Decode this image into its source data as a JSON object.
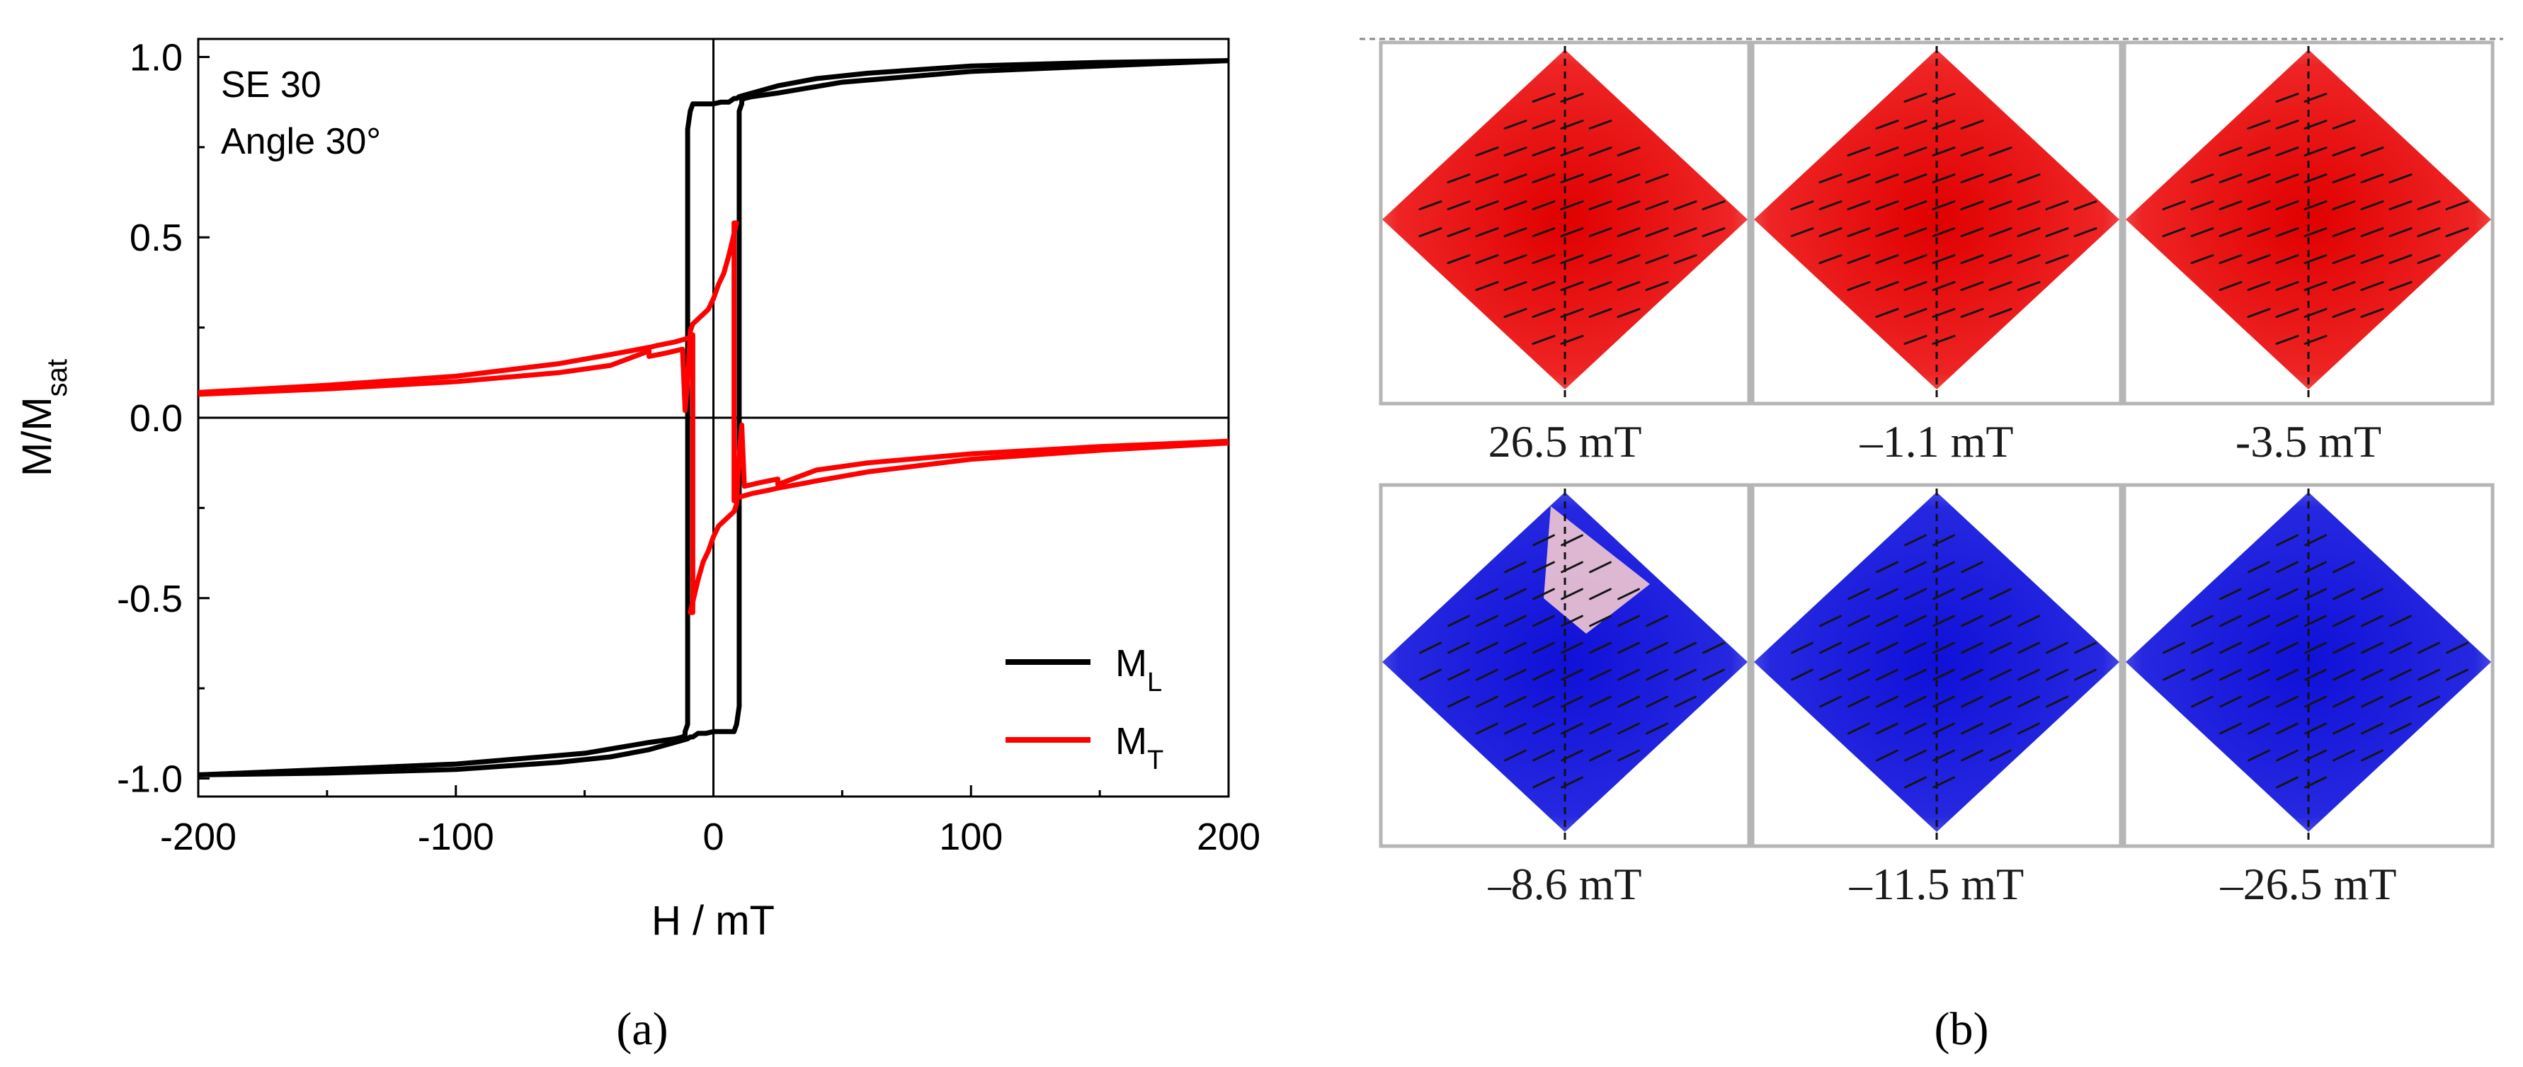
{
  "chart_data": [
    {
      "type": "line",
      "panel_label": "a",
      "annotation": [
        "SE 30",
        "Angle 30°"
      ],
      "xlabel": "H / mT",
      "ylabel": {
        "base": "M/M",
        "sub": "sat"
      },
      "xlim": [
        -200,
        200
      ],
      "ylim": [
        -1.05,
        1.05
      ],
      "xticks": [
        -200,
        -100,
        0,
        100,
        200
      ],
      "xtick_labels": [
        "-200",
        "-100",
        "0",
        "100",
        "200"
      ],
      "yticks": [
        1.0,
        0.5,
        0.0,
        -0.5,
        -1.0
      ],
      "ytick_labels": [
        "1.0",
        "0.5",
        "0.0",
        "-0.5",
        "-1.0"
      ],
      "zero_lines": true,
      "legend_position": "bottom-right",
      "series": [
        {
          "name": "M_L",
          "label_base": "M",
          "label_sub": "L",
          "color": "#000000",
          "branches": [
            {
              "x": [
                200,
                150,
                100,
                60,
                40,
                25,
                15,
                10,
                9,
                8,
                7,
                6,
                3,
                0,
                -3,
                -6,
                -8,
                -9,
                -10,
                -10,
                -10,
                -10,
                -10,
                -10,
                -11,
                -11,
                -12,
                -15,
                -25,
                -50,
                -100,
                -150,
                -200
              ],
              "y": [
                0.99,
                0.985,
                0.975,
                0.955,
                0.94,
                0.92,
                0.9,
                0.89,
                0.885,
                0.885,
                0.88,
                0.875,
                0.875,
                0.87,
                0.87,
                0.87,
                0.87,
                0.85,
                0.8,
                0.5,
                0.0,
                -0.5,
                -0.8,
                -0.85,
                -0.87,
                -0.88,
                -0.885,
                -0.89,
                -0.9,
                -0.93,
                -0.96,
                -0.975,
                -0.99
              ]
            },
            {
              "x": [
                -200,
                -150,
                -100,
                -60,
                -40,
                -25,
                -15,
                -10,
                -9,
                -8,
                -7,
                -6,
                -3,
                0,
                3,
                6,
                8,
                9,
                10,
                10,
                10,
                10,
                10,
                10,
                11,
                11,
                12,
                15,
                25,
                50,
                100,
                150,
                200
              ],
              "y": [
                -0.99,
                -0.985,
                -0.975,
                -0.955,
                -0.94,
                -0.92,
                -0.9,
                -0.89,
                -0.885,
                -0.885,
                -0.88,
                -0.875,
                -0.875,
                -0.87,
                -0.87,
                -0.87,
                -0.87,
                -0.85,
                -0.8,
                -0.5,
                0.0,
                0.5,
                0.8,
                0.85,
                0.87,
                0.88,
                0.885,
                0.89,
                0.9,
                0.93,
                0.96,
                0.975,
                0.99
              ]
            }
          ]
        },
        {
          "name": "M_T",
          "label_base": "M",
          "label_sub": "T",
          "color": "#ff0000",
          "branches": [
            {
              "x": [
                -200,
                -150,
                -100,
                -60,
                -40,
                -25,
                -22,
                -15,
                -10,
                -8,
                -8,
                -9,
                -6,
                -4,
                -2,
                0,
                2,
                5,
                8,
                9,
                10,
                11,
                12,
                18,
                25,
                25,
                40,
                60,
                100,
                150,
                200
              ],
              "y": [
                0.07,
                0.09,
                0.115,
                0.15,
                0.175,
                0.195,
                0.2,
                0.21,
                0.22,
                0.23,
                -0.54,
                -0.54,
                -0.45,
                -0.4,
                -0.37,
                -0.33,
                -0.3,
                -0.28,
                -0.26,
                -0.24,
                -0.1,
                -0.02,
                -0.19,
                -0.18,
                -0.17,
                -0.185,
                -0.145,
                -0.125,
                -0.1,
                -0.08,
                -0.065
              ]
            },
            {
              "x": [
                200,
                150,
                100,
                60,
                40,
                25,
                22,
                15,
                10,
                8,
                8,
                9,
                6,
                4,
                2,
                0,
                -2,
                -5,
                -8,
                -9,
                -10,
                -11,
                -12,
                -18,
                -25,
                -25,
                -40,
                -60,
                -100,
                -150,
                -200
              ],
              "y": [
                -0.07,
                -0.09,
                -0.115,
                -0.15,
                -0.175,
                -0.195,
                -0.2,
                -0.21,
                -0.22,
                -0.23,
                0.54,
                0.54,
                0.45,
                0.4,
                0.37,
                0.33,
                0.3,
                0.28,
                0.26,
                0.24,
                0.1,
                0.02,
                0.19,
                0.18,
                0.17,
                0.185,
                0.145,
                0.125,
                0.1,
                0.08,
                0.065
              ]
            }
          ]
        }
      ]
    },
    {
      "type": "image_grid",
      "panel_label": "b",
      "description_colors": {
        "positive": "#e81010",
        "negative": "#1f22dd"
      },
      "snapshots": [
        {
          "caption": "26.5 mT",
          "sign": "positive"
        },
        {
          "caption": "–1.1 mT",
          "sign": "positive"
        },
        {
          "caption": "-3.5 mT",
          "sign": "positive"
        },
        {
          "caption": "–8.6 mT",
          "sign": "negative"
        },
        {
          "caption": "–11.5 mT",
          "sign": "negative"
        },
        {
          "caption": "–26.5 mT",
          "sign": "negative"
        }
      ]
    }
  ],
  "captions": {
    "a": "(a)",
    "b": "(b)"
  }
}
